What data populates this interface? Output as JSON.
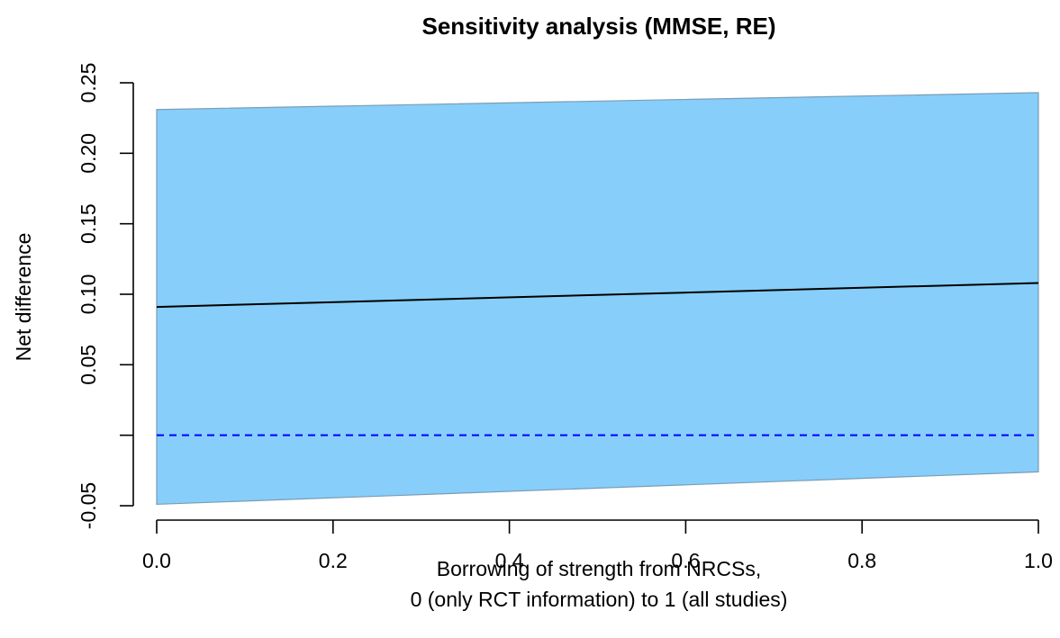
{
  "chart_data": {
    "type": "area",
    "title": "Sensitivity analysis (MMSE, RE)",
    "xlabel_line1": "Borrowing of strength from NRCSs,",
    "xlabel_line2": "0 (only RCT information) to 1 (all studies)",
    "ylabel": "Net difference",
    "xlim": [
      0,
      1
    ],
    "ylim": [
      -0.05,
      0.25
    ],
    "xticks": [
      "0.0",
      "0.2",
      "0.4",
      "0.6",
      "0.8",
      "1.0"
    ],
    "xtick_values": [
      0,
      0.2,
      0.4,
      0.6,
      0.8,
      1.0
    ],
    "yticks": [
      "-0.05",
      "",
      "0.05",
      "0.10",
      "0.15",
      "0.20",
      "0.25"
    ],
    "ytick_values": [
      -0.05,
      0,
      0.05,
      0.1,
      0.15,
      0.2,
      0.25
    ],
    "x": [
      0,
      1
    ],
    "series": [
      {
        "role": "upper",
        "values": [
          0.231,
          0.243
        ]
      },
      {
        "role": "estimate",
        "values": [
          0.091,
          0.108
        ]
      },
      {
        "role": "lower",
        "values": [
          -0.049,
          -0.026
        ]
      }
    ],
    "reference_line": {
      "y": 0,
      "style": "dashed"
    },
    "colors": {
      "band": "#87cefa",
      "band_edge": "#7a9db5",
      "estimate": "#000000",
      "reference": "#0000ff"
    }
  }
}
